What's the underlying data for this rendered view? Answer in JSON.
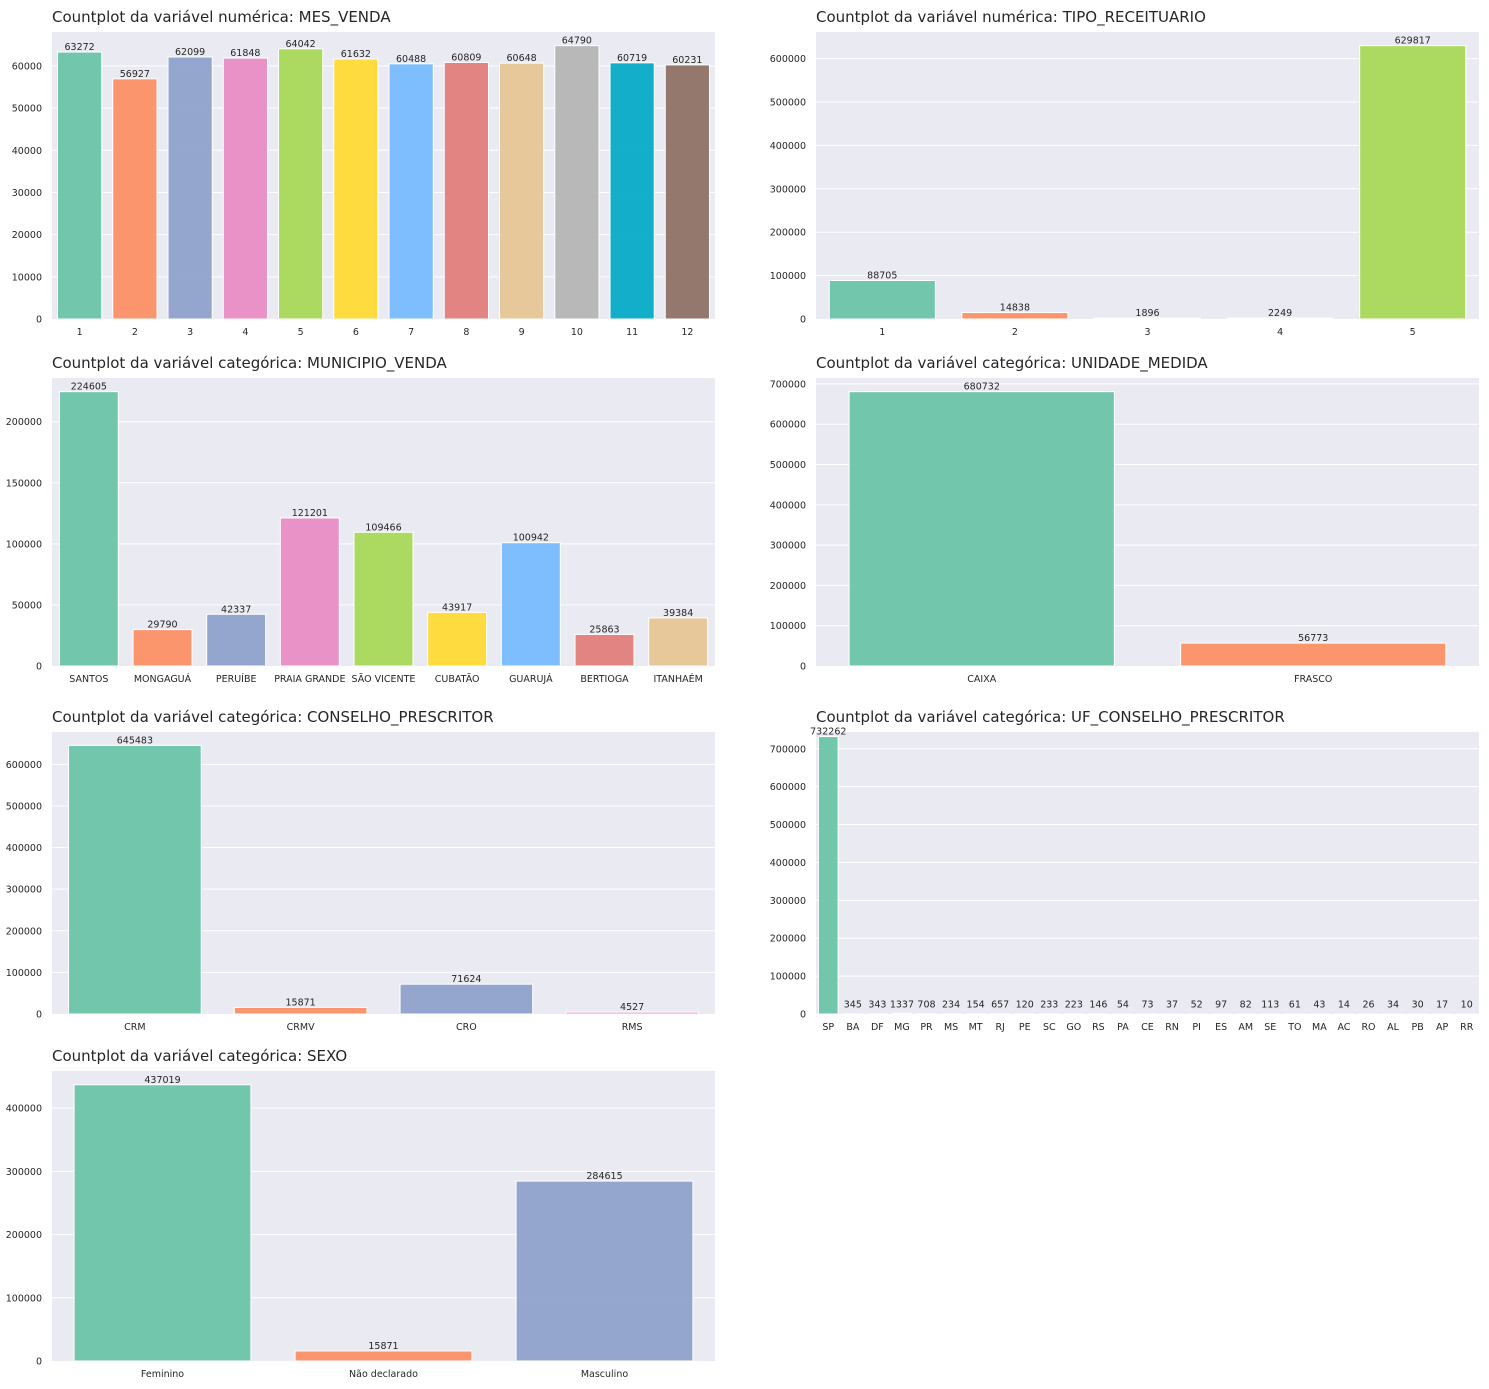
{
  "palette": [
    "#66c2a5",
    "#fc8d62",
    "#8da0cb",
    "#e78ac3",
    "#a6d854",
    "#ffd92f",
    "#74b9ff",
    "#e17b77",
    "#e5c494",
    "#b3b3b3",
    "#00a8c6",
    "#8c6d62"
  ],
  "colors": {
    "plot_bg": "#eaeaf2",
    "grid": "#ffffff",
    "text": "#262626"
  },
  "chart_data": [
    {
      "type": "bar",
      "title": "Countplot da variável numérica: MES_VENDA",
      "categories": [
        "1",
        "2",
        "3",
        "4",
        "5",
        "6",
        "7",
        "8",
        "9",
        "10",
        "11",
        "12"
      ],
      "values": [
        63272,
        56927,
        62099,
        61848,
        64042,
        61632,
        60488,
        60809,
        60648,
        64790,
        60719,
        60231
      ],
      "yticks": [
        "0",
        "10000",
        "20000",
        "30000",
        "40000",
        "50000",
        "60000"
      ],
      "ylim": [
        0,
        68030
      ],
      "label_offset": 40
    },
    {
      "type": "bar",
      "title": "Countplot da variável numérica: TIPO_RECEITUARIO",
      "categories": [
        "1",
        "2",
        "3",
        "4",
        "5"
      ],
      "values": [
        88705,
        14838,
        1896,
        2249,
        629817
      ],
      "yticks": [
        "0",
        "100000",
        "200000",
        "300000",
        "400000",
        "500000",
        "600000"
      ],
      "ylim": [
        0,
        661300
      ]
    },
    {
      "type": "bar",
      "title": "Countplot da variável categórica: MUNICIPIO_VENDA",
      "categories": [
        "SANTOS",
        "MONGAGUÁ",
        "PERUÍBE",
        "PRAIA GRANDE",
        "SÃO VICENTE",
        "CUBATÃO",
        "GUARUJÁ",
        "BERTIOGA",
        "ITANHAÉM"
      ],
      "values": [
        224605,
        29790,
        42337,
        121201,
        109466,
        43917,
        100942,
        25863,
        39384
      ],
      "yticks": [
        "0",
        "50000",
        "100000",
        "150000",
        "200000"
      ],
      "ylim": [
        0,
        235800
      ]
    },
    {
      "type": "bar",
      "title": "Countplot da variável categórica: UNIDADE_MEDIDA",
      "categories": [
        "CAIXA",
        "FRASCO"
      ],
      "values": [
        680732,
        56773
      ],
      "yticks": [
        "0",
        "100000",
        "200000",
        "300000",
        "400000",
        "500000",
        "600000",
        "700000"
      ],
      "ylim": [
        0,
        714700
      ]
    },
    {
      "type": "bar",
      "title": "Countplot da variável categórica: CONSELHO_PRESCRITOR",
      "categories": [
        "CRM",
        "CRMV",
        "CRO",
        "RMS"
      ],
      "values": [
        645483,
        15871,
        71624,
        4527
      ],
      "yticks": [
        "0",
        "100000",
        "200000",
        "300000",
        "400000",
        "500000",
        "600000"
      ],
      "ylim": [
        0,
        677700
      ]
    },
    {
      "type": "bar",
      "title": "Countplot da variável categórica: UF_CONSELHO_PRESCRITOR",
      "categories": [
        "SP",
        "BA",
        "DF",
        "MG",
        "PR",
        "MS",
        "MT",
        "RJ",
        "PE",
        "SC",
        "GO",
        "RS",
        "PA",
        "CE",
        "RN",
        "PI",
        "ES",
        "AM",
        "SE",
        "TO",
        "MA",
        "AC",
        "RO",
        "AL",
        "PB",
        "AP",
        "RR"
      ],
      "values": [
        732262,
        345,
        343,
        1337,
        708,
        234,
        154,
        657,
        120,
        233,
        223,
        146,
        54,
        73,
        37,
        52,
        97,
        82,
        113,
        61,
        43,
        14,
        26,
        34,
        30,
        17,
        10
      ],
      "yticks": [
        "0",
        "100000",
        "200000",
        "300000",
        "400000",
        "500000",
        "600000",
        "700000"
      ],
      "ylim": [
        0,
        744300
      ],
      "bar_width": 0.8,
      "label_floor": 12000
    },
    {
      "type": "bar",
      "title": "Countplot da variável categórica: SEXO",
      "categories": [
        "Feminino",
        "Não declarado",
        "Masculino"
      ],
      "values": [
        437019,
        15871,
        284615
      ],
      "yticks": [
        "0",
        "100000",
        "200000",
        "300000",
        "400000"
      ],
      "ylim": [
        0,
        458800
      ]
    }
  ]
}
